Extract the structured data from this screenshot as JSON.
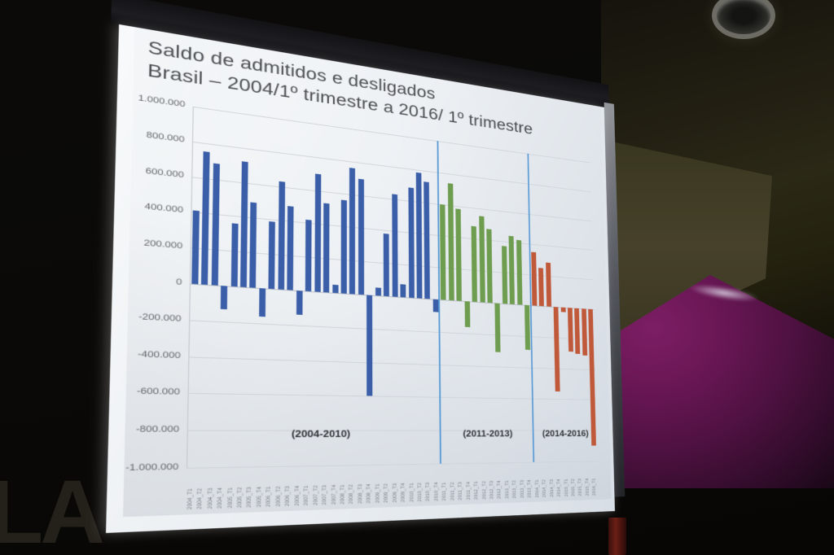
{
  "slide": {
    "title_line1": "Saldo de admitidos e desligados",
    "title_line2": "Brasil – 2004/1º trimestre a 2016/ 1º trimestre"
  },
  "room": {
    "la_text": "LA"
  },
  "chart_data": {
    "type": "bar",
    "title": "Saldo de admitidos e desligados — Brasil – 2004/1º trimestre a 2016/ 1º trimestre",
    "xlabel": "",
    "ylabel": "",
    "ylim": [
      -1000000,
      1000000
    ],
    "ytick_step": 200000,
    "ytick_labels": [
      "1.000.000",
      "800.000",
      "600.000",
      "400.000",
      "200.000",
      "0",
      "-200.000",
      "-400.000",
      "-600.000",
      "-800.000",
      "-1.000.000"
    ],
    "grid": true,
    "legend": "none",
    "categories": [
      "2004_T1",
      "2004_T2",
      "2004_T3",
      "2004_T4",
      "2005_T1",
      "2005_T2",
      "2005_T3",
      "2005_T4",
      "2006_T1",
      "2006_T2",
      "2006_T3",
      "2006_T4",
      "2007_T1",
      "2007_T2",
      "2007_T3",
      "2007_T4",
      "2008_T1",
      "2008_T2",
      "2008_T3",
      "2008_T4",
      "2009_T1",
      "2009_T2",
      "2009_T3",
      "2009_T4",
      "2010_T1",
      "2010_T2",
      "2010_T3",
      "2010_T4",
      "2011_T1",
      "2011_T2",
      "2011_T3",
      "2011_T4",
      "2012_T1",
      "2012_T2",
      "2012_T3",
      "2012_T4",
      "2013_T1",
      "2013_T2",
      "2013_T3",
      "2013_T4",
      "2014_T1",
      "2014_T2",
      "2014_T3",
      "2014_T4",
      "2015_T1",
      "2015_T2",
      "2015_T3",
      "2015_T4",
      "2016_T1"
    ],
    "values": [
      410000,
      750000,
      690000,
      -130000,
      360000,
      720000,
      490000,
      -160000,
      390000,
      630000,
      490000,
      -140000,
      420000,
      700000,
      530000,
      50000,
      560000,
      760000,
      700000,
      -600000,
      50000,
      380000,
      630000,
      80000,
      680000,
      780000,
      730000,
      -80000,
      600000,
      740000,
      580000,
      -160000,
      480000,
      550000,
      470000,
      -310000,
      370000,
      440000,
      420000,
      -290000,
      350000,
      250000,
      290000,
      -550000,
      -30000,
      -290000,
      -300000,
      -310000,
      -900000
    ],
    "groups": [
      {
        "label": "(2004-2010)",
        "color": "#3b5ea9",
        "start": 0,
        "end": 27
      },
      {
        "label": "(2011-2013)",
        "color": "#6e9d4f",
        "start": 28,
        "end": 39
      },
      {
        "label": "(2014-2016)",
        "color": "#c0583a",
        "start": 40,
        "end": 48
      }
    ],
    "separator_color": "#5b9bd5"
  }
}
